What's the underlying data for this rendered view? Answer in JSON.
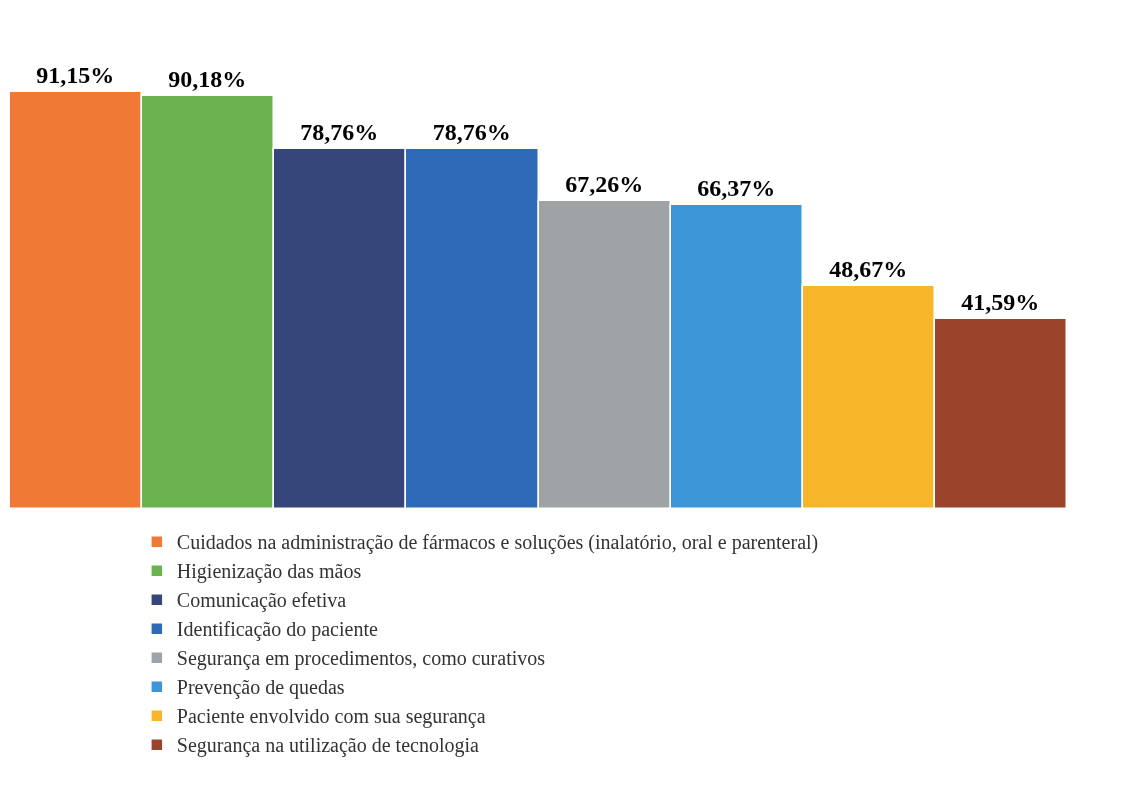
{
  "chart_data": {
    "type": "bar",
    "categories": [
      null
    ],
    "series": [
      {
        "name": "Cuidados na administração de fármacos e soluções (inalatório, oral e parenteral)",
        "color": "#f07935",
        "values": [
          91.15
        ],
        "value_labels": [
          "91,15%"
        ]
      },
      {
        "name": "Higienização das mãos",
        "color": "#6ab150",
        "values": [
          90.18
        ],
        "value_labels": [
          "90,18%"
        ]
      },
      {
        "name": "Comunicação efetiva",
        "color": "#36457a",
        "values": [
          78.76
        ],
        "value_labels": [
          "78,76%"
        ]
      },
      {
        "name": "Identificação do paciente",
        "color": "#2f6ab8",
        "values": [
          78.76
        ],
        "value_labels": [
          "78,76%"
        ]
      },
      {
        "name": "Segurança em procedimentos, como curativos",
        "color": "#9fa3a6",
        "values": [
          67.26
        ],
        "value_labels": [
          "67,26%"
        ]
      },
      {
        "name": "Prevenção de quedas",
        "color": "#3b95d6",
        "values": [
          66.37
        ],
        "value_labels": [
          "66,37%"
        ]
      },
      {
        "name": "Paciente envolvido com sua segurança",
        "color": "#f7b52a",
        "values": [
          48.67
        ],
        "value_labels": [
          "48,67%"
        ]
      },
      {
        "name": "Segurança na utilização de tecnologia",
        "color": "#9c432c",
        "values": [
          41.59
        ],
        "value_labels": [
          "41,59%"
        ]
      }
    ],
    "legend": "bottom",
    "tick_labels": false
  }
}
